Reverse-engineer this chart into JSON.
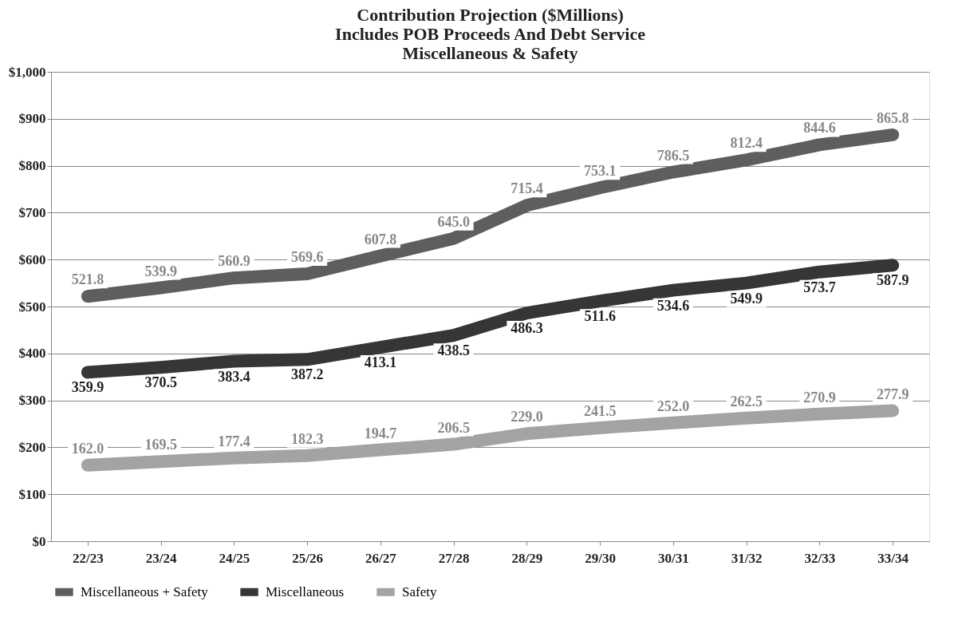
{
  "chart_data": {
    "type": "line",
    "title": "Contribution Projection ($Millions)\nIncludes POB Proceeds And Debt Service\nMiscellaneous & Safety",
    "categories": [
      "22/23",
      "23/24",
      "24/25",
      "25/26",
      "26/27",
      "27/28",
      "28/29",
      "29/30",
      "30/31",
      "31/32",
      "32/33",
      "33/34"
    ],
    "series": [
      {
        "name": "Miscellaneous + Safety",
        "color": "#5e5e5e",
        "values": [
          521.8,
          539.9,
          560.9,
          569.6,
          607.8,
          645.0,
          715.4,
          753.1,
          786.5,
          812.4,
          844.6,
          865.8
        ],
        "value_labels": [
          "521.8",
          "539.9",
          "560.9",
          "569.6",
          "607.8",
          "645.0",
          "715.4",
          "753.1",
          "786.5",
          "812.4",
          "844.6",
          "865.8"
        ]
      },
      {
        "name": "Miscellaneous",
        "color": "#363636",
        "values": [
          359.9,
          370.5,
          383.4,
          387.2,
          413.1,
          438.5,
          486.3,
          511.6,
          534.6,
          549.9,
          573.7,
          587.9
        ],
        "value_labels": [
          "359.9",
          "370.5",
          "383.4",
          "387.2",
          "413.1",
          "438.5",
          "486.3",
          "511.6",
          "534.6",
          "549.9",
          "573.7",
          "587.9"
        ]
      },
      {
        "name": "Safety",
        "color": "#a3a3a3",
        "values": [
          162.0,
          169.5,
          177.4,
          182.3,
          194.7,
          206.5,
          229.0,
          241.5,
          252.0,
          262.5,
          270.9,
          277.9
        ],
        "value_labels": [
          "162.0",
          "169.5",
          "177.4",
          "182.3",
          "194.7",
          "206.5",
          "229.0",
          "241.5",
          "252.0",
          "262.5",
          "270.9",
          "277.9"
        ]
      }
    ],
    "ylim": [
      0,
      1000
    ],
    "yticks": [
      {
        "value": 0,
        "label": "$0"
      },
      {
        "value": 100,
        "label": "$100"
      },
      {
        "value": 200,
        "label": "$200"
      },
      {
        "value": 300,
        "label": "$300"
      },
      {
        "value": 400,
        "label": "$400"
      },
      {
        "value": 500,
        "label": "$500"
      },
      {
        "value": 600,
        "label": "$600"
      },
      {
        "value": 700,
        "label": "$700"
      },
      {
        "value": 800,
        "label": "$800"
      },
      {
        "value": 900,
        "label": "$900"
      },
      {
        "value": 1000,
        "label": "$1,000"
      }
    ],
    "grid": "y",
    "legend": "bottom",
    "line_style": "solid"
  }
}
